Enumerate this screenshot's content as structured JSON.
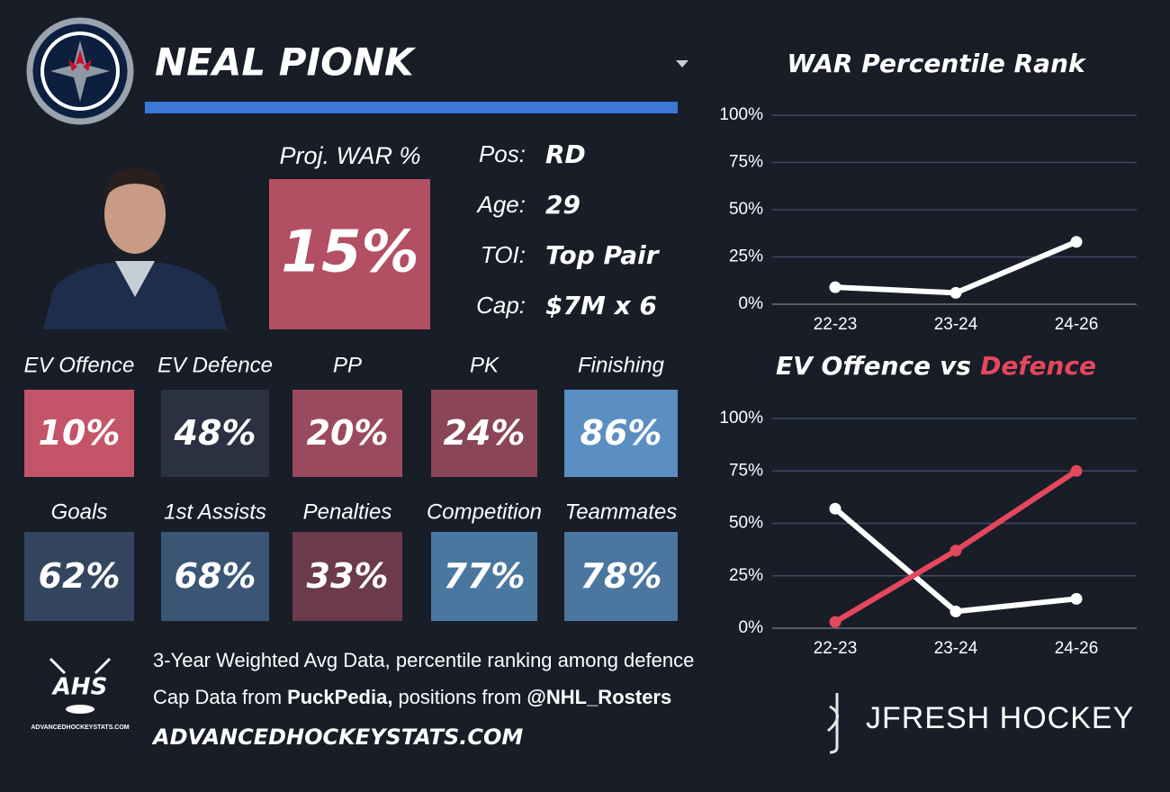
{
  "header": {
    "name": "NEAL PIONK"
  },
  "projection": {
    "label": "Proj. WAR %",
    "value": "15%",
    "color": "#b34f63"
  },
  "info": [
    {
      "label": "Pos:",
      "value": "RD"
    },
    {
      "label": "Age:",
      "value": "29"
    },
    {
      "label": "TOI:",
      "value": "Top Pair"
    },
    {
      "label": "Cap:",
      "value": "$7M x 6"
    }
  ],
  "tiles": [
    [
      {
        "label": "EV Offence",
        "value": "10%",
        "color": "#c45468"
      },
      {
        "label": "EV Defence",
        "value": "48%",
        "color": "#2c3142"
      },
      {
        "label": "PP",
        "value": "20%",
        "color": "#9b4a5e"
      },
      {
        "label": "PK",
        "value": "24%",
        "color": "#8a4658"
      },
      {
        "label": "Finishing",
        "value": "86%",
        "color": "#5b8ec2"
      }
    ],
    [
      {
        "label": "Goals",
        "value": "62%",
        "color": "#34465f"
      },
      {
        "label": "1st Assists",
        "value": "68%",
        "color": "#3b5675"
      },
      {
        "label": "Penalties",
        "value": "33%",
        "color": "#6b3a4c"
      },
      {
        "label": "Competition",
        "value": "77%",
        "color": "#4a77a0"
      },
      {
        "label": "Teammates",
        "value": "78%",
        "color": "#4a76a0"
      }
    ]
  ],
  "chart_data": [
    {
      "type": "line",
      "title": "WAR Percentile Rank",
      "categories": [
        "22-23",
        "23-24",
        "24-26"
      ],
      "series": [
        {
          "color": "#ffffff",
          "values": [
            9,
            6,
            33
          ]
        }
      ],
      "ylim": [
        0,
        100
      ],
      "yticks": [
        {
          "value": 0,
          "label": "0%"
        },
        {
          "value": 25,
          "label": "25%"
        },
        {
          "value": 50,
          "label": "50%"
        },
        {
          "value": 75,
          "label": "75%"
        },
        {
          "value": 100,
          "label": "100%"
        }
      ],
      "grid": true
    },
    {
      "type": "line",
      "title_join": "vs",
      "categories": [
        "22-23",
        "23-24",
        "24-26"
      ],
      "series": [
        {
          "name": "EV Offence",
          "color": "#ffffff",
          "values": [
            57,
            8,
            14
          ]
        },
        {
          "name": "Defence",
          "color": "#e5475c",
          "values": [
            3,
            37,
            75
          ]
        }
      ],
      "ylim": [
        0,
        100
      ],
      "yticks": [
        {
          "value": 0,
          "label": "0%"
        },
        {
          "value": 25,
          "label": "25%"
        },
        {
          "value": 50,
          "label": "50%"
        },
        {
          "value": 75,
          "label": "75%"
        },
        {
          "value": 100,
          "label": "100%"
        }
      ],
      "grid": true
    }
  ],
  "footer": {
    "note": "3-Year Weighted Avg Data, percentile ranking among defence",
    "cap_prefix": "Cap Data from",
    "cap_source": "PuckPedia,",
    "pos_prefix": "positions from",
    "pos_source": "@NHL_Rosters",
    "site": "ADVANCEDHOCKEYSTATS.COM",
    "ahs_logo": "AHS",
    "ahs_small": "ADVANCEDHOCKEYSTATS.COM",
    "brand": "JFRESH HOCKEY"
  }
}
